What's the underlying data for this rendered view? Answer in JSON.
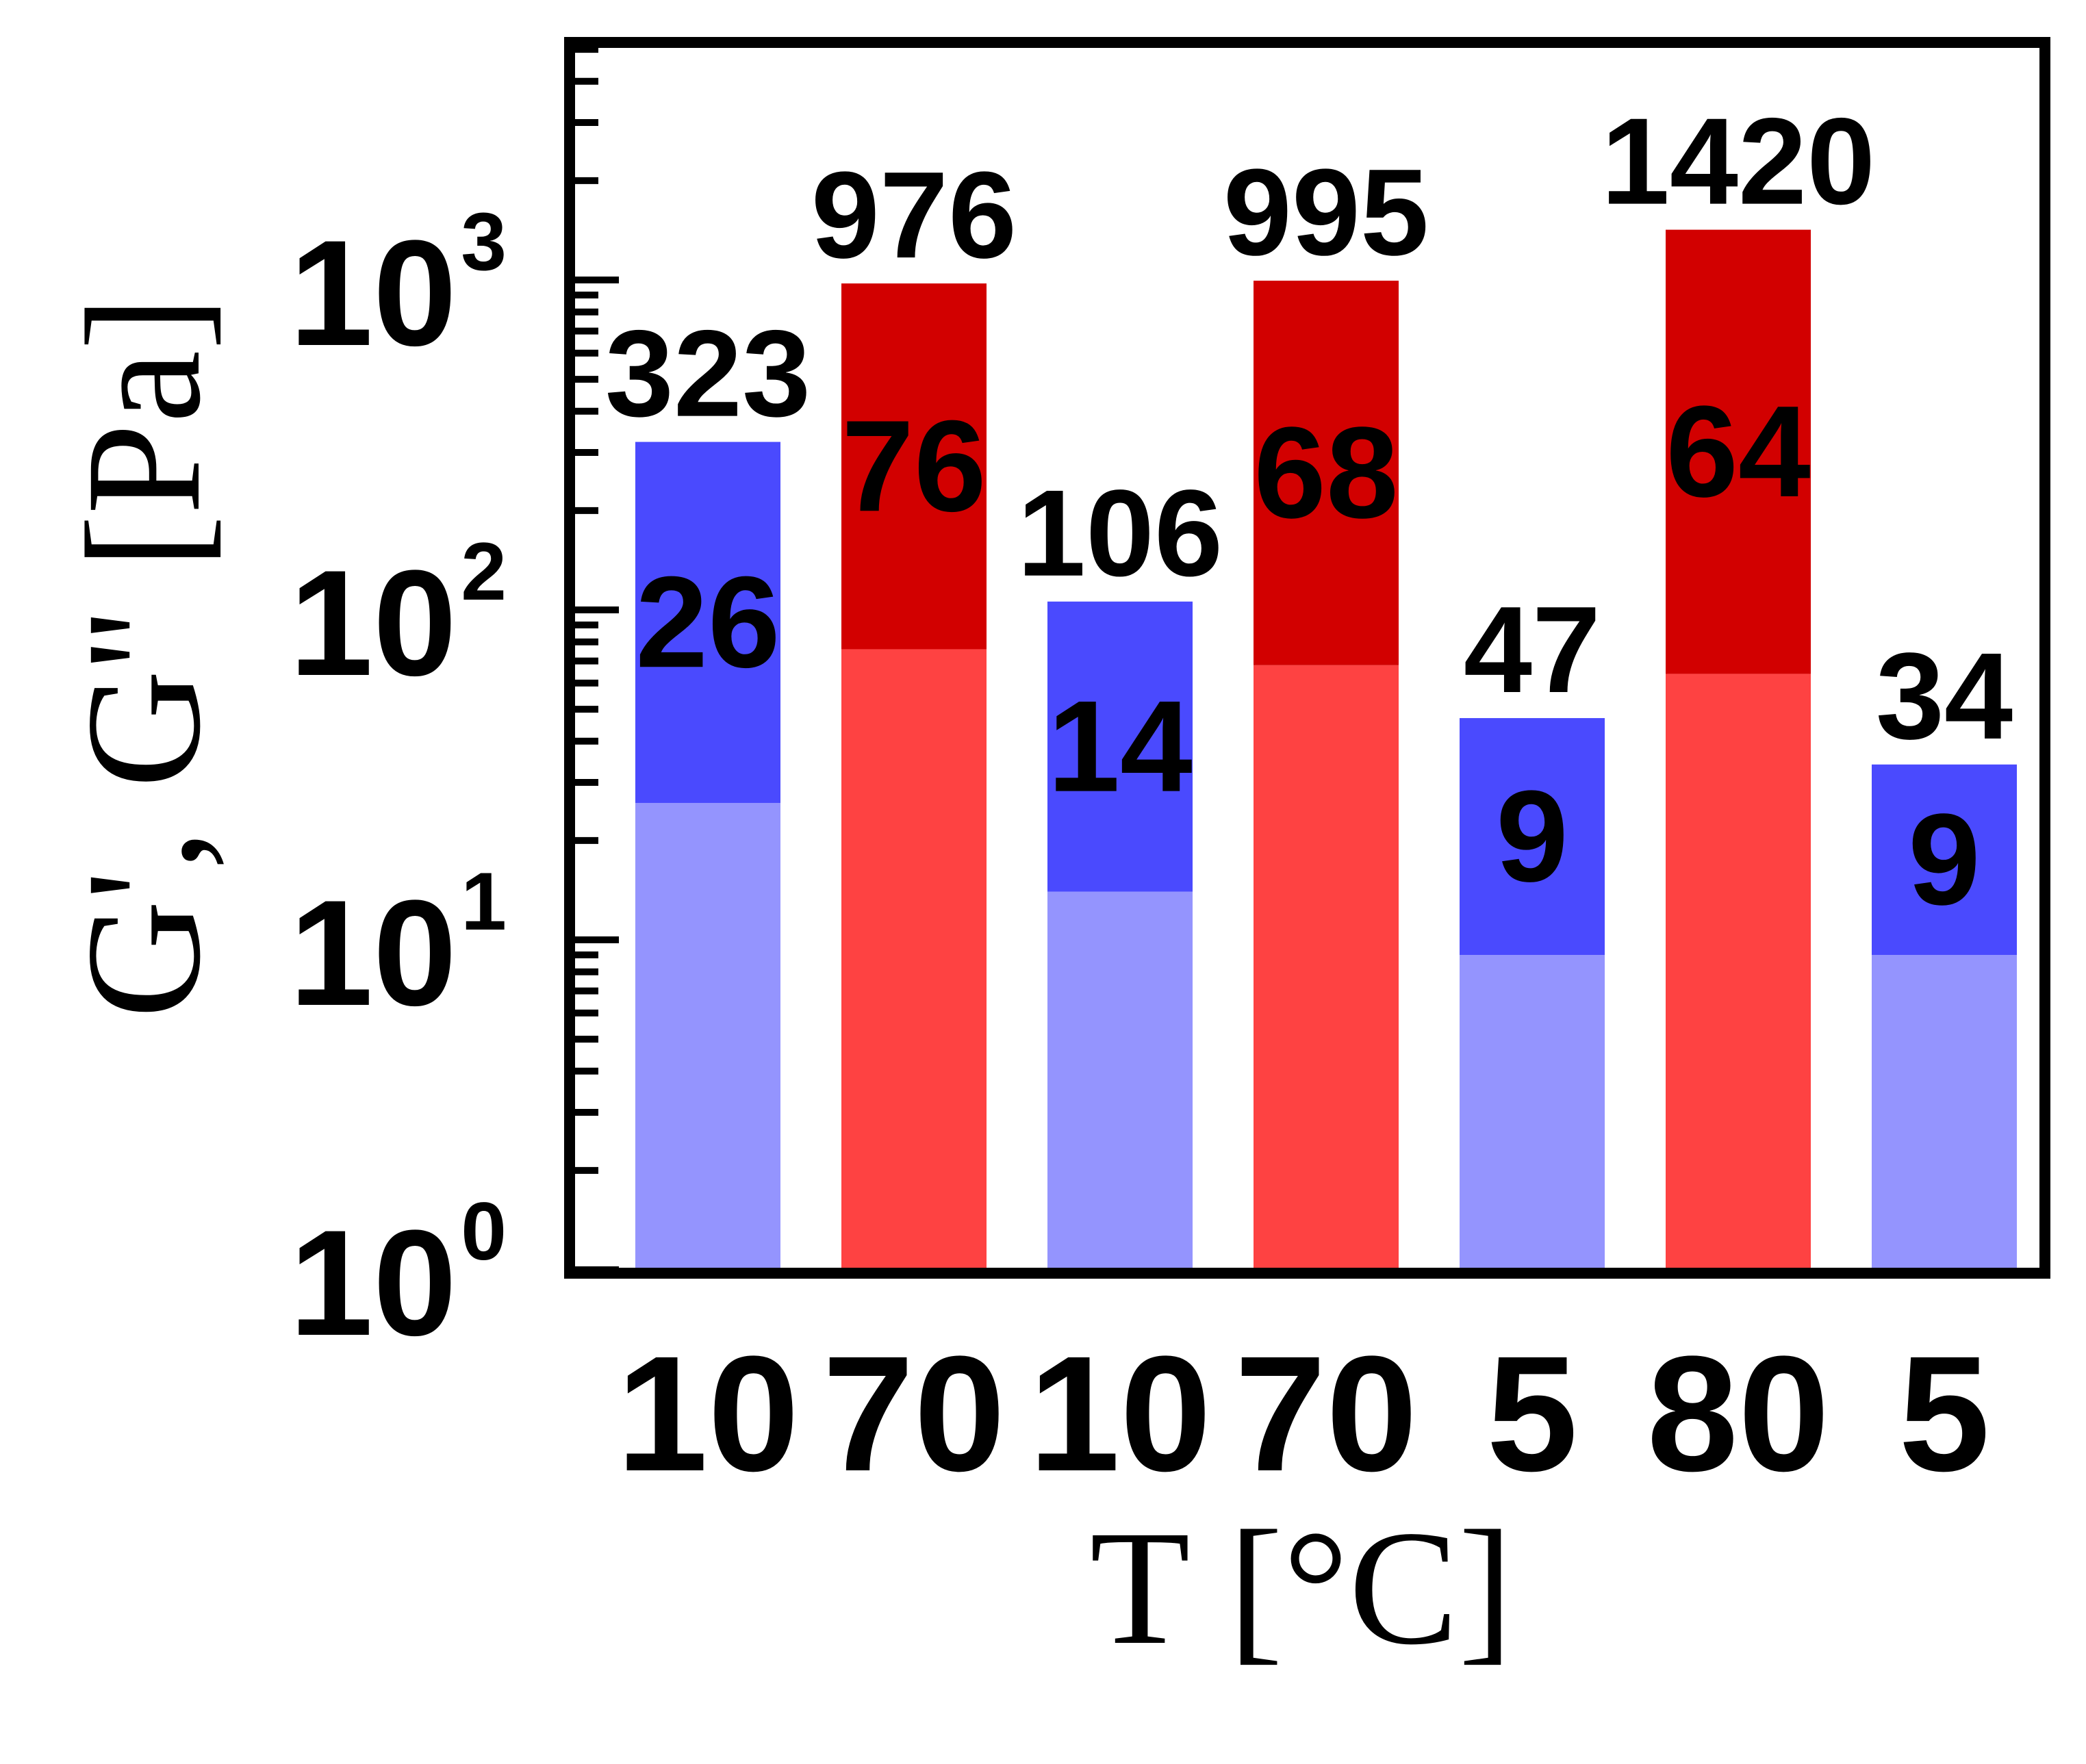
{
  "chart_data": {
    "type": "bar",
    "yscale": "log",
    "ylim": [
      1,
      5000
    ],
    "xlabel": "T [°C]",
    "ylabel": "G', G'' [Pa]",
    "y_ticks": [
      {
        "base": "10",
        "exp": "0",
        "value": 1
      },
      {
        "base": "10",
        "exp": "1",
        "value": 10
      },
      {
        "base": "10",
        "exp": "2",
        "value": 100
      },
      {
        "base": "10",
        "exp": "3",
        "value": 1000
      }
    ],
    "categories": [
      "10",
      "70",
      "10",
      "70",
      "5",
      "80",
      "5"
    ],
    "series": [
      {
        "values": [
          323,
          976,
          106,
          995,
          47,
          1420,
          34
        ]
      },
      {
        "values": [
          26,
          76,
          14,
          68,
          9,
          64,
          9
        ]
      }
    ],
    "top_labels": [
      "323",
      "976",
      "106",
      "995",
      "47",
      "1420",
      "34"
    ],
    "inner_labels": [
      "26",
      "76",
      "14",
      "68",
      "9",
      "64",
      "9"
    ],
    "colors": {
      "cold_upper": "#4a4afe",
      "cold_lower": "#9494fe",
      "hot_upper": "#d20000",
      "hot_lower": "#fe4242",
      "axis": "#000000"
    },
    "bar_colors": [
      "cold",
      "hot",
      "cold",
      "hot",
      "cold",
      "hot",
      "cold"
    ]
  }
}
